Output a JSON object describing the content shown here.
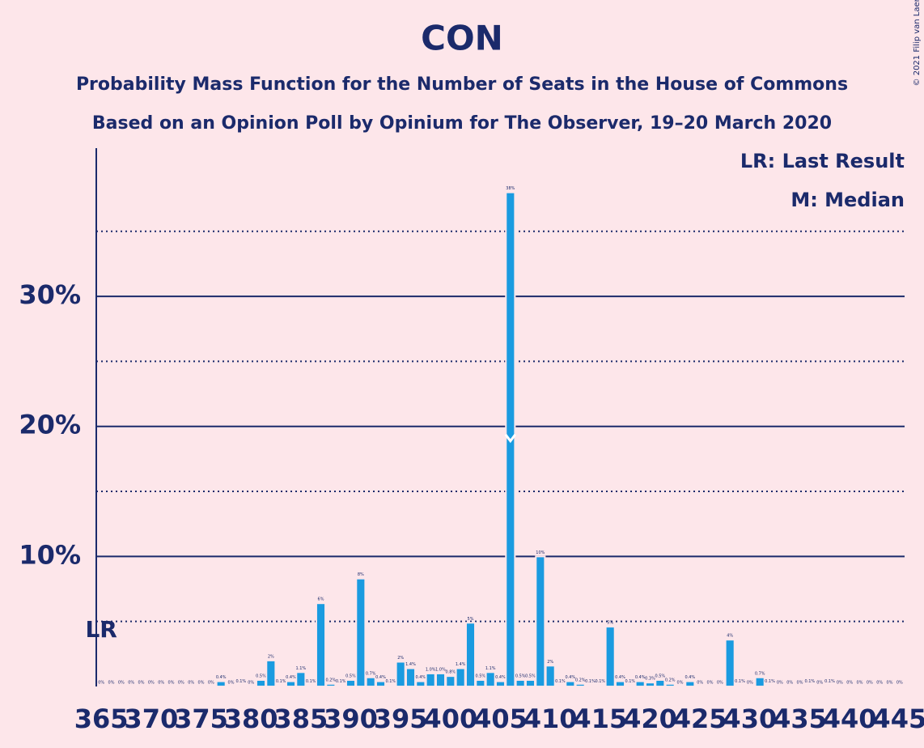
{
  "chart_data": {
    "type": "bar",
    "title": "CON",
    "subtitle": "Probability Mass Function for the Number of Seats in the House of Commons",
    "subtitle2": "Based on an Opinion Poll by Opinium for The Observer, 19–20 March 2020",
    "copyright": "© 2021 Filip van Laenen",
    "legend": [
      "LR: Last Result",
      "M: Median"
    ],
    "last_result": 365,
    "last_result_label": "LR",
    "median": 406,
    "color": "#1a9be0",
    "x": [
      365,
      366,
      367,
      368,
      369,
      370,
      371,
      372,
      373,
      374,
      375,
      376,
      377,
      378,
      379,
      380,
      381,
      382,
      383,
      384,
      385,
      386,
      387,
      388,
      389,
      390,
      391,
      392,
      393,
      394,
      395,
      396,
      397,
      398,
      399,
      400,
      401,
      402,
      403,
      404,
      405,
      406,
      407,
      408,
      409,
      410,
      411,
      412,
      413,
      414,
      415,
      416,
      417,
      418,
      419,
      420,
      421,
      422,
      423,
      424,
      425,
      426,
      427,
      428,
      429,
      430,
      431,
      432,
      433,
      434,
      435,
      436,
      437,
      438,
      439,
      440,
      441,
      442,
      443,
      444,
      445
    ],
    "values": [
      0,
      0,
      0,
      0,
      0,
      0,
      0,
      0,
      0,
      0,
      0,
      0,
      0.4,
      0,
      0.1,
      0,
      0.5,
      2,
      0.1,
      0.4,
      1.1,
      0.1,
      6.4,
      0.2,
      0.1,
      0.5,
      8.3,
      0.7,
      0.4,
      0.1,
      1.9,
      1.4,
      0.4,
      1.0,
      1.0,
      0.8,
      1.4,
      4.9,
      0.5,
      1.1,
      0.4,
      38,
      0.5,
      0.5,
      10,
      1.6,
      0.1,
      0.4,
      0.2,
      0.1,
      0.1,
      4.6,
      0.4,
      0.1,
      0.4,
      0.3,
      0.5,
      0.2,
      0,
      0.4,
      0,
      0,
      0,
      3.6,
      0.1,
      0,
      0.7,
      0.1,
      0,
      0,
      0,
      0.1,
      0,
      0.1,
      0,
      0,
      0,
      0,
      0,
      0,
      0
    ],
    "value_labels": [
      "0%",
      "0%",
      "0%",
      "0%",
      "0%",
      "0%",
      "0%",
      "0%",
      "0%",
      "0%",
      "0%",
      "0%",
      "0.4%",
      "0%",
      "0.1%",
      "0%",
      "0.5%",
      "2%",
      "0.1%",
      "0.4%",
      "1.1%",
      "0.1%",
      "6%",
      "0.2%",
      "0.1%",
      "0.5%",
      "8%",
      "0.7%",
      "0.4%",
      "0.1%",
      "2%",
      "1.4%",
      "0.4%",
      "1.0%",
      "1.0%",
      "0.8%",
      "1.4%",
      "5%",
      "0.5%",
      "1.1%",
      "0.4%",
      "38%",
      "0.5%",
      "0.5%",
      "10%",
      "2%",
      "0.1%",
      "0.4%",
      "0.2%",
      "0.1%",
      "0.1%",
      "5%",
      "0.4%",
      "0.1%",
      "0.4%",
      "0.3%",
      "0.5%",
      "0.2%",
      "0%",
      "0.4%",
      "0%",
      "0%",
      "0%",
      "4%",
      "0.1%",
      "0%",
      "0.7%",
      "0.1%",
      "0%",
      "0%",
      "0%",
      "0.1%",
      "0%",
      "0.1%",
      "0%",
      "0%",
      "0%",
      "0%",
      "0%",
      "0%",
      "0%"
    ],
    "xticks": [
      365,
      370,
      375,
      380,
      385,
      390,
      395,
      400,
      405,
      410,
      415,
      420,
      425,
      430,
      435,
      440,
      445
    ],
    "ylim": [
      0,
      41.4
    ],
    "yticks": [
      {
        "value": 10,
        "label": "10%"
      },
      {
        "value": 20,
        "label": "20%"
      },
      {
        "value": 30,
        "label": "30%"
      }
    ],
    "minor_yticks": [
      5,
      15,
      25,
      35
    ],
    "grid": true
  }
}
